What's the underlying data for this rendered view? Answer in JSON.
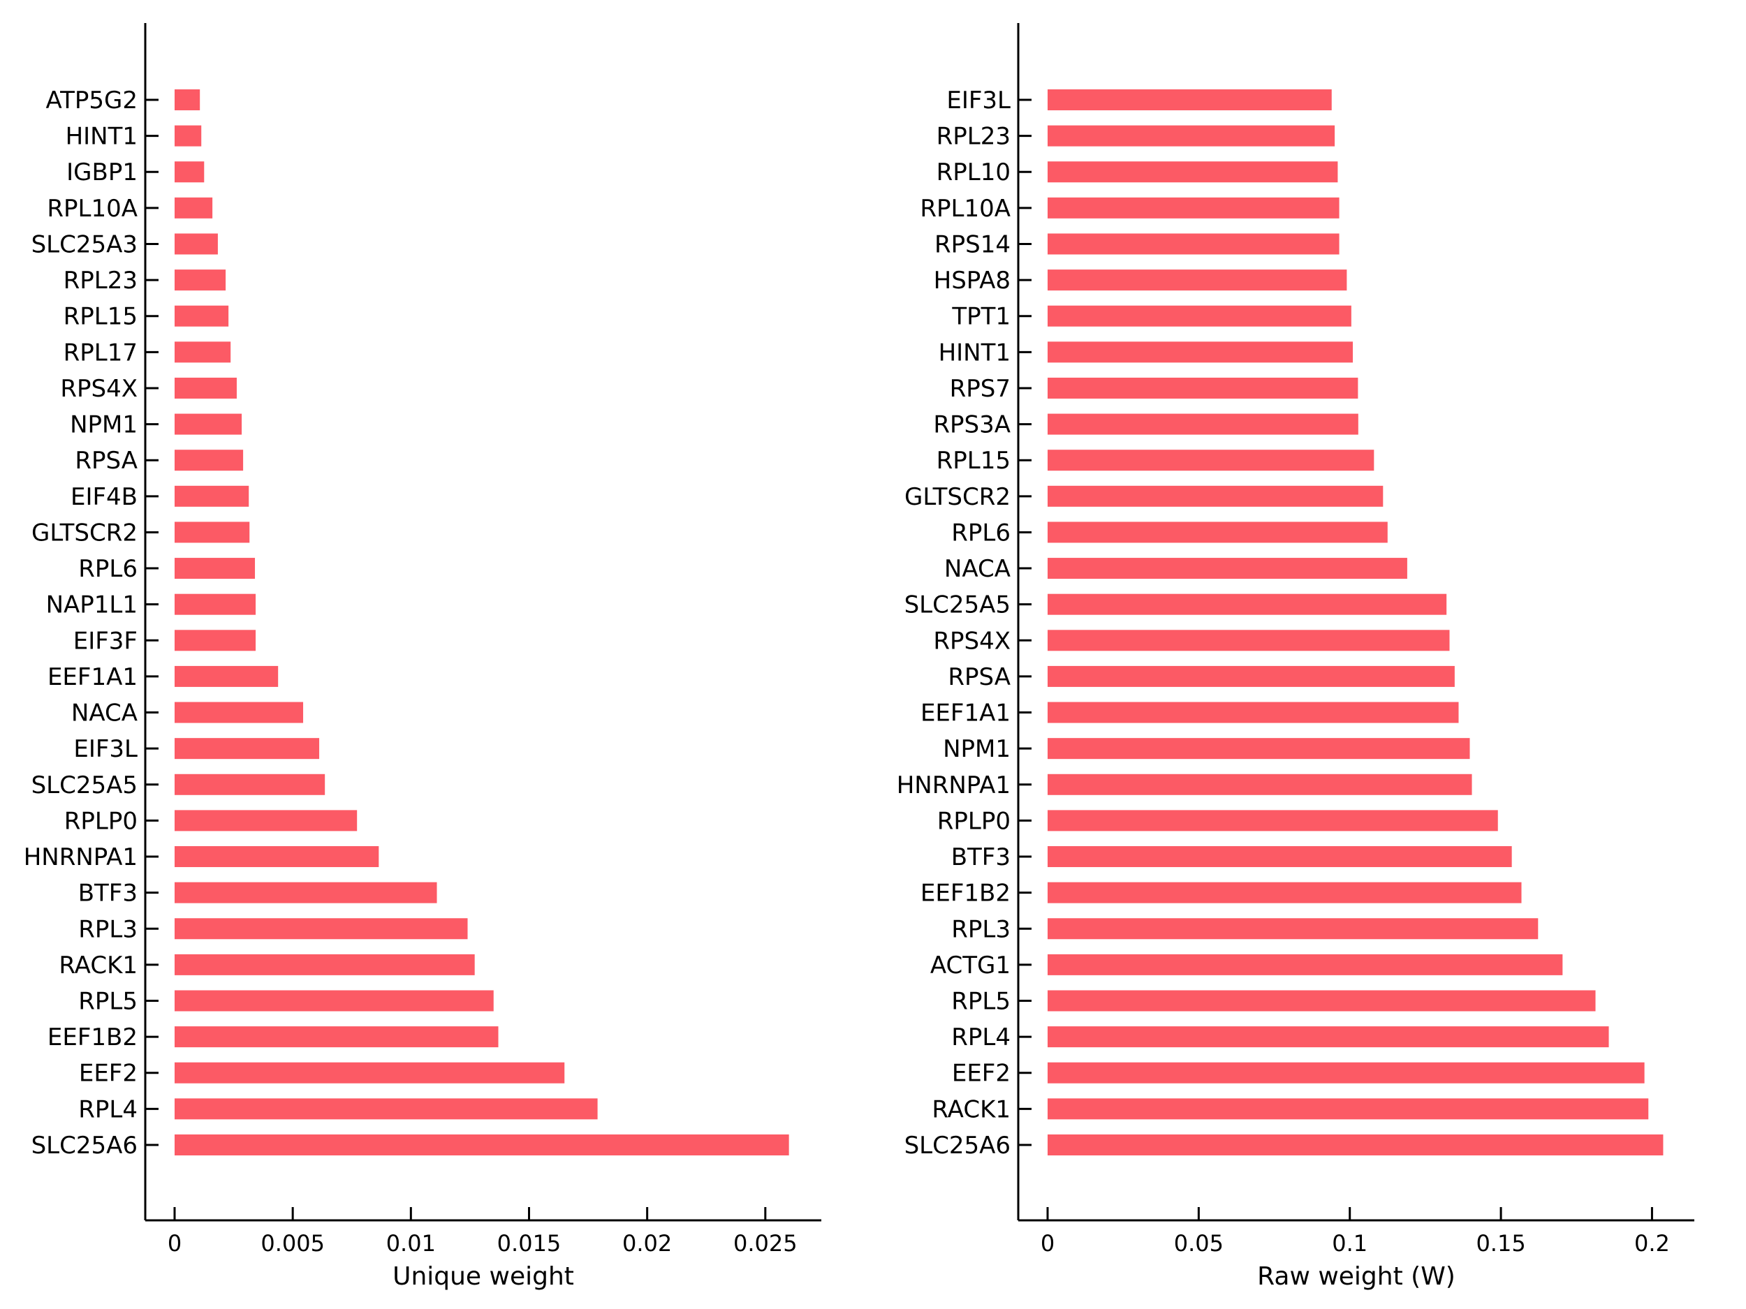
{
  "page": {
    "background_color": "#ffffff",
    "bar_color": "#fc5a65",
    "axis_color": "#000000"
  },
  "chart_data": [
    {
      "type": "bar",
      "orientation": "horizontal",
      "title": "",
      "xlabel": "Unique weight",
      "ylabel": "",
      "grid": false,
      "legend": "none",
      "xlim": [
        0,
        0.02737
      ],
      "xticks": [
        0,
        0.005,
        0.01,
        0.015,
        0.02,
        0.025
      ],
      "xtick_labels": [
        "0",
        "0.005",
        "0.01",
        "0.015",
        "0.02",
        "0.025"
      ],
      "categories": [
        "ATP5G2",
        "HINT1",
        "IGBP1",
        "RPL10A",
        "SLC25A3",
        "RPL23",
        "RPL15",
        "RPL17",
        "RPS4X",
        "NPM1",
        "RPSA",
        "EIF4B",
        "GLTSCR2",
        "RPL6",
        "NAP1L1",
        "EIF3F",
        "EEF1A1",
        "NACA",
        "EIF3L",
        "SLC25A5",
        "RPLP0",
        "HNRNPA1",
        "BTF3",
        "RPL3",
        "RACK1",
        "RPL5",
        "EEF1B2",
        "EEF2",
        "RPL4",
        "SLC25A6"
      ],
      "values": [
        0.00107,
        0.00113,
        0.00125,
        0.0016,
        0.00183,
        0.00216,
        0.00228,
        0.00237,
        0.00263,
        0.00284,
        0.0029,
        0.00314,
        0.00317,
        0.0034,
        0.00343,
        0.00343,
        0.00438,
        0.00544,
        0.00612,
        0.00636,
        0.00772,
        0.00864,
        0.0111,
        0.0124,
        0.0127,
        0.0135,
        0.0137,
        0.0165,
        0.0179,
        0.026
      ]
    },
    {
      "type": "bar",
      "orientation": "horizontal",
      "title": "",
      "xlabel": "Raw weight (W)",
      "ylabel": "",
      "grid": false,
      "legend": "none",
      "xlim": [
        0,
        0.214
      ],
      "xticks": [
        0,
        0.05,
        0.1,
        0.15,
        0.2
      ],
      "xtick_labels": [
        "0",
        "0.05",
        "0.1",
        "0.15",
        "0.2"
      ],
      "categories": [
        "EIF3L",
        "RPL23",
        "RPL10",
        "RPL10A",
        "RPS14",
        "HSPA8",
        "TPT1",
        "HINT1",
        "RPS7",
        "RPS3A",
        "RPL15",
        "GLTSCR2",
        "RPL6",
        "NACA",
        "SLC25A5",
        "RPS4X",
        "RPSA",
        "EEF1A1",
        "NPM1",
        "HNRNPA1",
        "RPLP0",
        "BTF3",
        "EEF1B2",
        "RPL3",
        "ACTG1",
        "RPL5",
        "RPL4",
        "EEF2",
        "RACK1",
        "SLC25A6"
      ],
      "values": [
        0.094,
        0.095,
        0.096,
        0.0965,
        0.0965,
        0.099,
        0.1005,
        0.101,
        0.1027,
        0.1028,
        0.108,
        0.111,
        0.1125,
        0.119,
        0.132,
        0.133,
        0.1347,
        0.136,
        0.1397,
        0.1404,
        0.149,
        0.1536,
        0.1568,
        0.1623,
        0.1704,
        0.1813,
        0.1857,
        0.1975,
        0.1988,
        0.2037
      ]
    }
  ]
}
